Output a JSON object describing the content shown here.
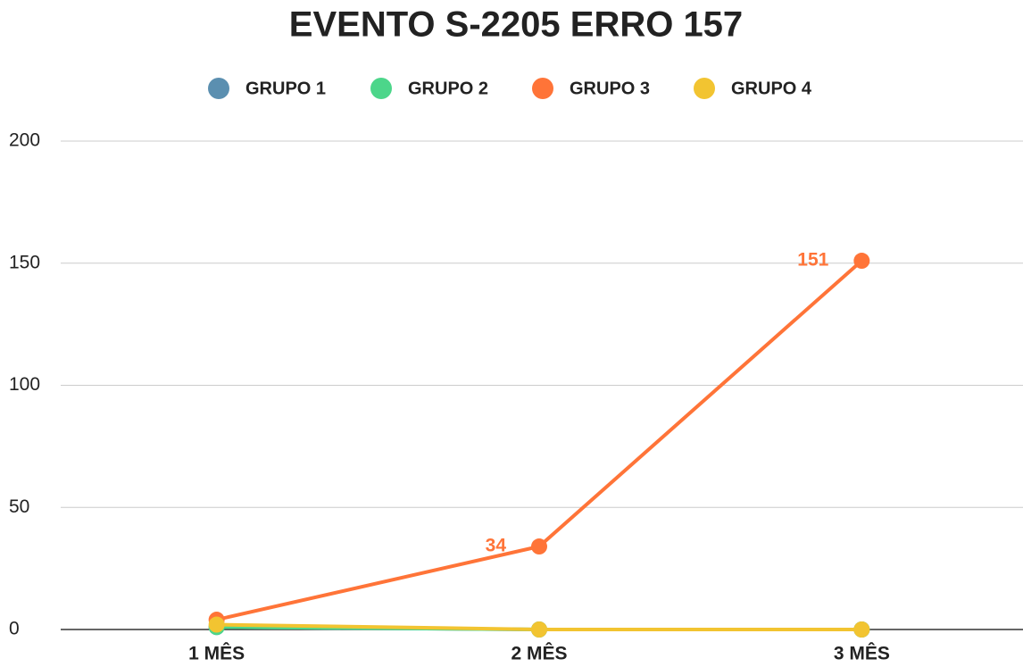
{
  "chart_data": {
    "type": "line",
    "title": "EVENTO S-2205 ERRO 157",
    "categories": [
      "1 MÊS",
      "2 MÊS",
      "3 MÊS"
    ],
    "series": [
      {
        "name": "GRUPO 1",
        "color": "#5b8fb0",
        "values": [
          1,
          0,
          0
        ]
      },
      {
        "name": "GRUPO 2",
        "color": "#4cd68a",
        "values": [
          1,
          0,
          0
        ]
      },
      {
        "name": "GRUPO 3",
        "color": "#ff7438",
        "values": [
          4,
          34,
          151
        ],
        "value_labels": [
          null,
          "34",
          "151"
        ]
      },
      {
        "name": "GRUPO 4",
        "color": "#f2c431",
        "values": [
          2,
          0,
          0
        ]
      }
    ],
    "ylim": [
      0,
      200
    ],
    "yticks": [
      0,
      50,
      100,
      150,
      200
    ],
    "grid": true,
    "legend": "top"
  }
}
